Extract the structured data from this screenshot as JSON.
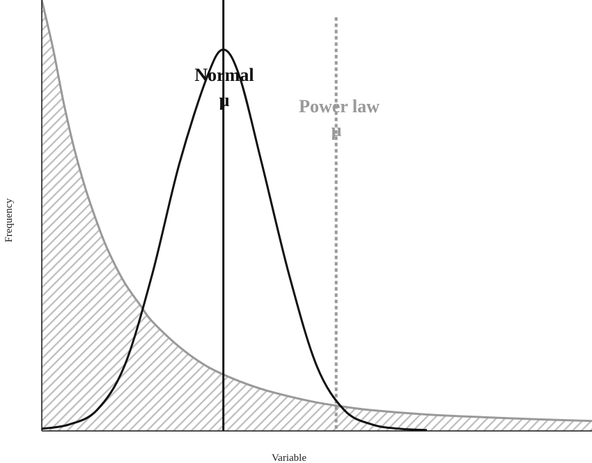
{
  "chart_data": {
    "type": "line",
    "title": "",
    "xlabel": "Variable",
    "ylabel": "Frequency",
    "xlim": [
      0,
      10
    ],
    "ylim": [
      0,
      10
    ],
    "grid": false,
    "series": [
      {
        "name": "Power law",
        "color": "#999999",
        "fill": "diagonal-hatch",
        "x": [
          0.0,
          0.2,
          0.4,
          0.6,
          0.8,
          1.0,
          1.2,
          1.5,
          1.8,
          2.0,
          2.5,
          3.0,
          3.5,
          4.0,
          4.5,
          5.0,
          5.5,
          6.0,
          7.0,
          8.0,
          9.0,
          10.0
        ],
        "y": [
          10.0,
          8.9,
          7.6,
          6.5,
          5.6,
          4.85,
          4.2,
          3.45,
          2.9,
          2.55,
          1.95,
          1.5,
          1.2,
          0.97,
          0.8,
          0.66,
          0.56,
          0.48,
          0.38,
          0.32,
          0.27,
          0.23
        ]
      },
      {
        "name": "Normal",
        "color": "#111111",
        "fill": "none",
        "x": [
          0.0,
          0.5,
          1.0,
          1.5,
          2.0,
          2.5,
          3.0,
          3.3,
          3.6,
          4.0,
          4.5,
          5.0,
          5.5,
          6.0,
          6.5,
          7.0
        ],
        "y": [
          0.05,
          0.15,
          0.48,
          1.5,
          3.6,
          6.2,
          8.2,
          8.85,
          8.2,
          6.2,
          3.6,
          1.5,
          0.48,
          0.15,
          0.05,
          0.02
        ]
      }
    ],
    "mean_lines": [
      {
        "series": "Normal",
        "x": 3.3,
        "y_top": 10.7,
        "style": "solid",
        "color": "#111111"
      },
      {
        "series": "Power law",
        "x": 5.35,
        "y_top": 9.6,
        "style": "dashed",
        "color": "#999999"
      }
    ]
  },
  "labels": {
    "normal_name": "Normal",
    "normal_symbol": "μ",
    "power_name": "Power law",
    "power_symbol": "μ",
    "x_axis": "Variable",
    "y_axis": "Frequency"
  }
}
